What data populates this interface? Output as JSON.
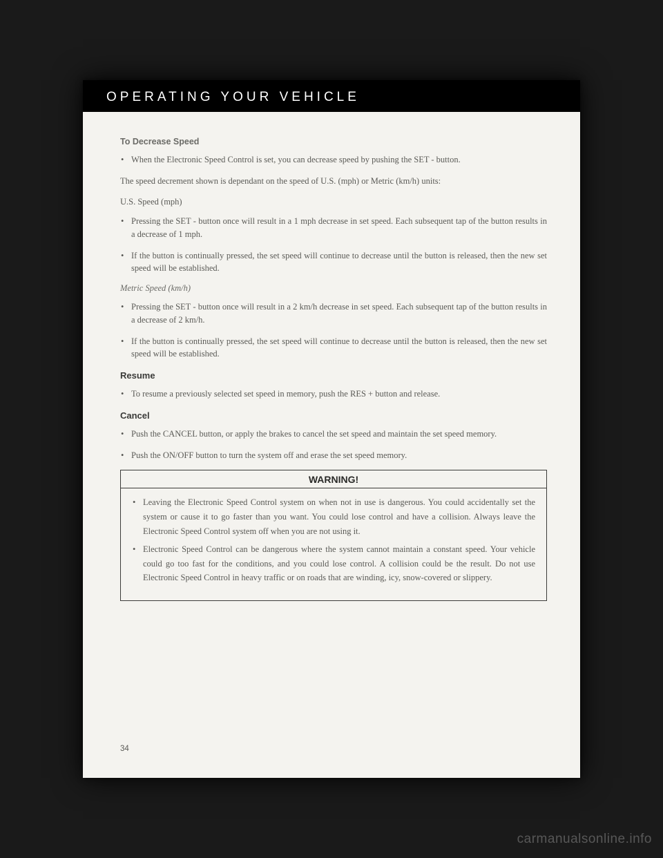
{
  "header": {
    "title": "OPERATING YOUR VEHICLE"
  },
  "sections": {
    "decrease": {
      "title": "To Decrease Speed",
      "bullet1": "When the Electronic Speed Control is set, you can decrease speed by pushing the SET - button.",
      "para1": "The speed decrement shown is dependant on the speed of U.S. (mph) or Metric (km/h) units:",
      "us_label": "U.S. Speed (mph)",
      "us_b1": "Pressing the SET - button once will result in a 1 mph decrease in set speed. Each subsequent tap of the button results in a decrease of 1 mph.",
      "us_b2": "If the button is continually pressed, the set speed will continue to decrease until the button is released, then the new set speed will be established.",
      "metric_label": "Metric Speed (km/h)",
      "metric_b1": "Pressing the SET - button once will result in a 2 km/h decrease in set speed. Each subsequent tap of the button results in a decrease of 2 km/h.",
      "metric_b2": "If the button is continually pressed, the set speed will continue to decrease until the button is released, then the new set speed will be established."
    },
    "resume": {
      "title": "Resume",
      "b1": "To resume a previously selected set speed in memory, push the RES + button and release."
    },
    "cancel": {
      "title": "Cancel",
      "b1": "Push the CANCEL button, or apply the brakes to cancel the set speed and maintain the set speed memory.",
      "b2": "Push the ON/OFF button to turn the system off and erase the set speed memory."
    },
    "warning": {
      "title": "WARNING!",
      "b1": "Leaving the Electronic Speed Control system on when not in use is dangerous. You could accidentally set the system or cause it to go faster than you want. You could lose control and have a collision. Always leave the Electronic Speed Control system off when you are not using it.",
      "b2": "Electronic Speed Control can be dangerous where the system cannot maintain a constant speed. Your vehicle could go too fast for the conditions, and you could lose control. A collision could be the result. Do not use Electronic Speed Control in heavy traffic or on roads that are winding, icy, snow-covered or slippery."
    }
  },
  "page_number": "34",
  "watermark": "carmanualsonline.info",
  "colors": {
    "page_bg": "#f4f3ef",
    "outer_bg": "#1a1a1a",
    "text": "#5a5a56",
    "heading": "#3a3a38"
  }
}
